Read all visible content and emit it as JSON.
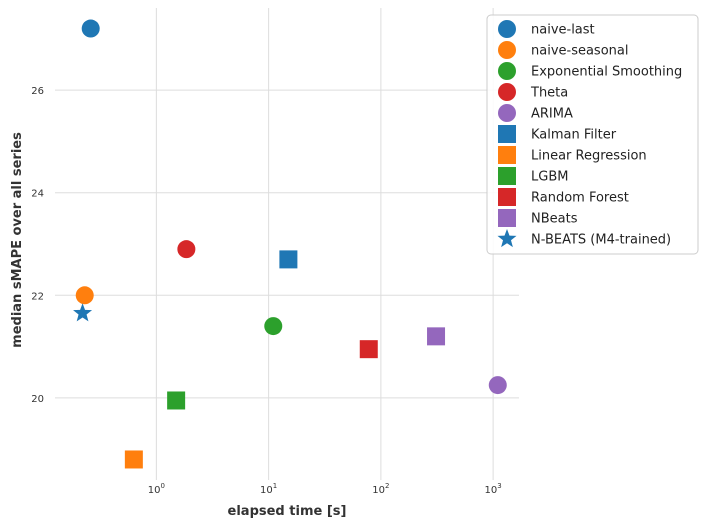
{
  "chart_data": {
    "type": "scatter",
    "title": "",
    "xlabel": "elapsed time [s]",
    "ylabel": "median sMAPE over all series",
    "xscale": "log",
    "xlim": [
      0.125,
      1700
    ],
    "ylim": [
      18.4,
      27.6
    ],
    "grid": true,
    "x_ticks": [
      {
        "value": 1,
        "base": "10",
        "exp": "0"
      },
      {
        "value": 10,
        "base": "10",
        "exp": "1"
      },
      {
        "value": 100,
        "base": "10",
        "exp": "2"
      },
      {
        "value": 1000,
        "base": "10",
        "exp": "3"
      }
    ],
    "y_ticks": [
      20,
      22,
      24,
      26
    ],
    "legend_position": "top-right",
    "series": [
      {
        "name": "naive-last",
        "marker": "circle",
        "color": "#1f77b4",
        "x": 0.26,
        "y": 27.2
      },
      {
        "name": "naive-seasonal",
        "marker": "circle",
        "color": "#ff7f0e",
        "x": 0.23,
        "y": 22.0
      },
      {
        "name": "Exponential Smoothing",
        "marker": "circle",
        "color": "#2ca02c",
        "x": 11.0,
        "y": 21.4
      },
      {
        "name": "Theta",
        "marker": "circle",
        "color": "#d62728",
        "x": 1.85,
        "y": 22.9
      },
      {
        "name": "ARIMA",
        "marker": "circle",
        "color": "#9467bd",
        "x": 1100,
        "y": 20.25
      },
      {
        "name": "Kalman Filter",
        "marker": "square",
        "color": "#1f77b4",
        "x": 15.0,
        "y": 22.7
      },
      {
        "name": "Linear Regression",
        "marker": "square",
        "color": "#ff7f0e",
        "x": 0.63,
        "y": 18.8
      },
      {
        "name": "LGBM",
        "marker": "square",
        "color": "#2ca02c",
        "x": 1.5,
        "y": 19.95
      },
      {
        "name": "Random Forest",
        "marker": "square",
        "color": "#d62728",
        "x": 78,
        "y": 20.95
      },
      {
        "name": "NBeats",
        "marker": "square",
        "color": "#9467bd",
        "x": 310,
        "y": 21.2
      },
      {
        "name": "N-BEATS (M4-trained)",
        "marker": "star",
        "color": "#1f77b4",
        "x": 0.22,
        "y": 21.65
      }
    ]
  }
}
